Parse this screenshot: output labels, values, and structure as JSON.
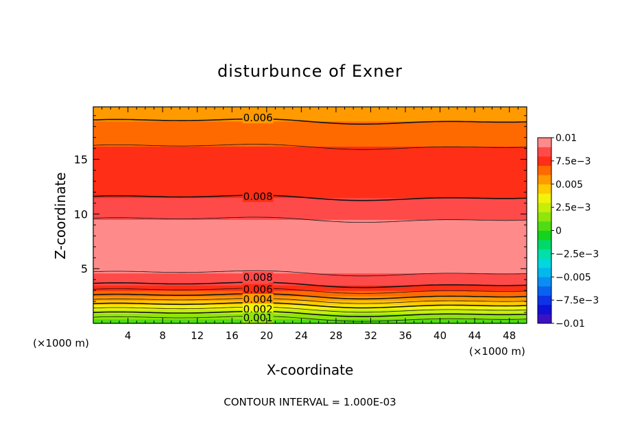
{
  "chart_data": {
    "type": "heatmap",
    "title": "disturbunce of Exner",
    "xlabel": "X-coordinate",
    "ylabel": "Z-coordinate",
    "x_unit_left": "(×1000 m)",
    "x_unit_right": "(×1000 m)",
    "footer": "CONTOUR INTERVAL = 1.000E-03",
    "xlim": [
      0,
      50
    ],
    "ylim": [
      0,
      19.8
    ],
    "x_ticks": [
      4,
      8,
      12,
      16,
      20,
      24,
      28,
      32,
      36,
      40,
      44,
      48
    ],
    "x_tick_labels": [
      "4",
      "8",
      "12",
      "16",
      "20",
      "24",
      "28",
      "32",
      "36",
      "40",
      "44",
      "48"
    ],
    "y_ticks": [
      5,
      10,
      15
    ],
    "y_tick_labels": [
      "5",
      "10",
      "15"
    ],
    "contour_interval": 0.001,
    "contour_labels": [
      {
        "text": "0.006",
        "x": 19,
        "z": 18.8
      },
      {
        "text": "0.008",
        "x": 19,
        "z": 11.6
      },
      {
        "text": "0.008",
        "x": 19,
        "z": 4.2
      },
      {
        "text": "0.006",
        "x": 19,
        "z": 3.1
      },
      {
        "text": "0.004",
        "x": 19,
        "z": 2.2
      },
      {
        "text": "0.002",
        "x": 19,
        "z": 1.3
      },
      {
        "text": "0.001",
        "x": 19,
        "z": 0.5
      }
    ],
    "value_profile_z": [
      0,
      0.4,
      0.8,
      1.2,
      1.6,
      2.0,
      2.4,
      2.8,
      3.2,
      3.6,
      4.0,
      4.4,
      5.0,
      6.0,
      7.0,
      8.0,
      9.5,
      11.5,
      13.5,
      15.5,
      17.5,
      19.8
    ],
    "value_profile": [
      0.0001,
      0.0009,
      0.0018,
      0.0028,
      0.0038,
      0.0048,
      0.0058,
      0.0066,
      0.0074,
      0.0081,
      0.0086,
      0.0089,
      0.0092,
      0.0097,
      0.0099,
      0.0097,
      0.009,
      0.008,
      0.0076,
      0.0072,
      0.0066,
      0.0052
    ],
    "colorbar": {
      "levels": [
        -0.01,
        -0.009,
        -0.008,
        -0.007,
        -0.006,
        -0.005,
        -0.004,
        -0.003,
        -0.002,
        -0.001,
        0,
        0.001,
        0.002,
        0.003,
        0.004,
        0.005,
        0.006,
        0.007,
        0.008,
        0.009,
        0.01
      ],
      "colors": [
        "#7e0fb5",
        "#3a12c4",
        "#1010d6",
        "#0c34e6",
        "#0a62f0",
        "#0a8ef2",
        "#04b8ee",
        "#00d8dc",
        "#00e0a8",
        "#00d96a",
        "#15d21e",
        "#4fdc13",
        "#8ee60c",
        "#c6ee08",
        "#f2f20a",
        "#ffca00",
        "#ff9a00",
        "#ff6a00",
        "#ff2e16",
        "#ff4a4a",
        "#ff8a8a",
        "#ffb0b0"
      ],
      "tick_values": [
        0.01,
        0.0075,
        0.005,
        0.0025,
        0,
        -0.0025,
        -0.005,
        -0.0075,
        -0.01
      ],
      "tick_labels": [
        "0.01",
        "7.5e−3",
        "0.005",
        "2.5e−3",
        "0",
        "−2.5e−3",
        "−0.005",
        "−7.5e−3",
        "−0.01"
      ]
    }
  }
}
